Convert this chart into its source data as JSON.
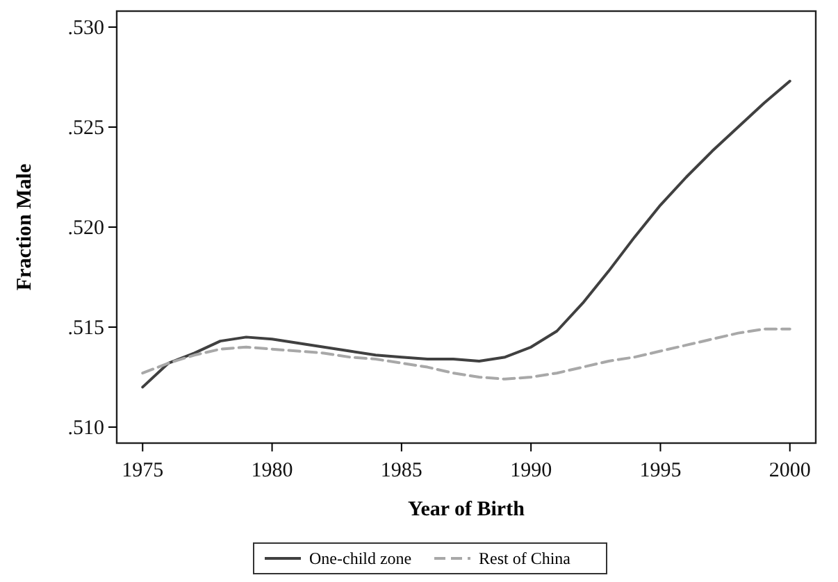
{
  "chart_data": {
    "type": "line",
    "xlabel": "Year of Birth",
    "ylabel": "Fraction Male",
    "x": [
      1975,
      1976,
      1977,
      1978,
      1979,
      1980,
      1981,
      1982,
      1983,
      1984,
      1985,
      1986,
      1987,
      1988,
      1989,
      1990,
      1991,
      1992,
      1993,
      1994,
      1995,
      1996,
      1997,
      1998,
      1999,
      2000
    ],
    "series": [
      {
        "name": "One-child zone",
        "color": "#404040",
        "line_style": "solid",
        "values": [
          0.512,
          0.5132,
          0.5137,
          0.5143,
          0.5145,
          0.5144,
          0.5142,
          0.514,
          0.5138,
          0.5136,
          0.5135,
          0.5134,
          0.5134,
          0.5133,
          0.5135,
          0.514,
          0.5148,
          0.5162,
          0.5178,
          0.5195,
          0.5211,
          0.5225,
          0.5238,
          0.525,
          0.5262,
          0.5273
        ]
      },
      {
        "name": "Rest of China",
        "color": "#a8a8a8",
        "line_style": "dashed",
        "values": [
          0.5127,
          0.5132,
          0.5136,
          0.5139,
          0.514,
          0.5139,
          0.5138,
          0.5137,
          0.5135,
          0.5134,
          0.5132,
          0.513,
          0.5127,
          0.5125,
          0.5124,
          0.5125,
          0.5127,
          0.513,
          0.5133,
          0.5135,
          0.5138,
          0.5141,
          0.5144,
          0.5147,
          0.5149,
          0.5149
        ]
      }
    ],
    "xlim": [
      1974,
      2001
    ],
    "xticks": [
      1975,
      1980,
      1985,
      1990,
      1995,
      2000
    ],
    "ylim": [
      0.5092,
      0.5308
    ],
    "yticks": [
      {
        "value": 0.51,
        "label": ".510"
      },
      {
        "value": 0.515,
        "label": ".515"
      },
      {
        "value": 0.52,
        "label": ".520"
      },
      {
        "value": 0.525,
        "label": ".525"
      },
      {
        "value": 0.53,
        "label": ".530"
      }
    ],
    "grid": false,
    "legend": "bottom",
    "marker": "none"
  }
}
